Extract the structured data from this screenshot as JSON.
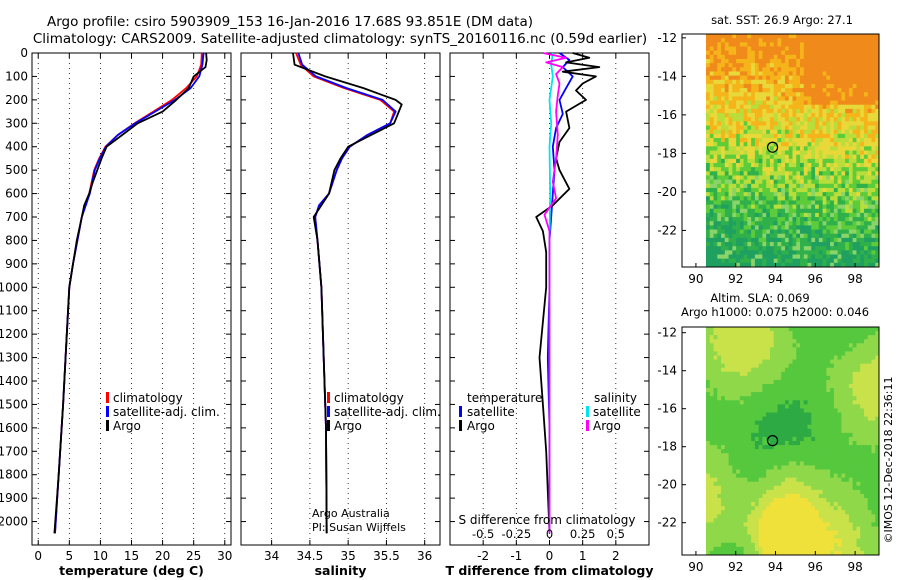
{
  "header": {
    "line1": "Argo profile: csiro 5903909_153 16-Jan-2016 17.68S 93.851E (DM data)",
    "line2": "Climatology: CARS2009. Satellite-adjusted climatology: synTS_20160116.nc (0.59d earlier)"
  },
  "watermark": "©IMOS 12-Dec-2018 22:36:11",
  "credit": {
    "line1": "Argo Australia",
    "line2": "PI: Susan Wijffels"
  },
  "colors": {
    "climatology": "#ff0000",
    "satellite": "#0000ff",
    "argo": "#000000",
    "s_satellite": "#00e5ee",
    "s_argo": "#ff00ff"
  },
  "chart_data": [
    {
      "type": "line",
      "name": "temperature",
      "xlabel": "temperature (deg C)",
      "ylabel": "depth",
      "xlim": [
        -1,
        31
      ],
      "ylim": [
        2100,
        0
      ],
      "xticks": [
        0,
        5,
        10,
        15,
        20,
        25,
        30
      ],
      "yticks": [
        0,
        100,
        200,
        300,
        400,
        500,
        600,
        700,
        800,
        900,
        1000,
        1100,
        1200,
        1300,
        1400,
        1500,
        1600,
        1700,
        1800,
        1900,
        2000
      ],
      "legend": [
        "climatology",
        "satellite-adj. clim.",
        "Argo"
      ],
      "series": [
        {
          "name": "climatology",
          "color": "#ff0000",
          "points": [
            [
              26.3,
              0
            ],
            [
              26.2,
              50
            ],
            [
              25.5,
              100
            ],
            [
              23.8,
              150
            ],
            [
              21.5,
              200
            ],
            [
              18.5,
              250
            ],
            [
              15.5,
              300
            ],
            [
              12.8,
              350
            ],
            [
              10.8,
              400
            ],
            [
              9.8,
              450
            ],
            [
              9.0,
              500
            ],
            [
              8.2,
              600
            ],
            [
              7.0,
              700
            ],
            [
              6.3,
              800
            ],
            [
              5.6,
              900
            ],
            [
              5.0,
              1000
            ],
            [
              4.6,
              1200
            ],
            [
              4.0,
              1500
            ],
            [
              3.3,
              1800
            ],
            [
              2.7,
              2050
            ]
          ]
        },
        {
          "name": "satellite-adj. clim.",
          "color": "#0000ff",
          "points": [
            [
              26.6,
              0
            ],
            [
              26.4,
              50
            ],
            [
              25.9,
              100
            ],
            [
              24.5,
              150
            ],
            [
              22.0,
              200
            ],
            [
              18.8,
              250
            ],
            [
              15.6,
              300
            ],
            [
              12.8,
              350
            ],
            [
              10.9,
              400
            ],
            [
              9.9,
              450
            ],
            [
              9.1,
              500
            ],
            [
              8.3,
              600
            ],
            [
              7.0,
              700
            ],
            [
              6.3,
              800
            ],
            [
              5.6,
              900
            ],
            [
              5.0,
              1000
            ],
            [
              4.6,
              1200
            ],
            [
              4.0,
              1500
            ],
            [
              3.3,
              1800
            ],
            [
              2.7,
              2050
            ]
          ]
        },
        {
          "name": "Argo",
          "color": "#000000",
          "points": [
            [
              27.0,
              0
            ],
            [
              27.1,
              30
            ],
            [
              26.9,
              60
            ],
            [
              25.0,
              100
            ],
            [
              24.2,
              150
            ],
            [
              22.2,
              200
            ],
            [
              20.0,
              250
            ],
            [
              16.0,
              300
            ],
            [
              13.5,
              350
            ],
            [
              11.0,
              400
            ],
            [
              10.2,
              450
            ],
            [
              9.5,
              500
            ],
            [
              8.8,
              550
            ],
            [
              8.2,
              600
            ],
            [
              7.4,
              650
            ],
            [
              7.0,
              700
            ],
            [
              6.2,
              800
            ],
            [
              5.6,
              900
            ],
            [
              5.0,
              1000
            ],
            [
              4.6,
              1200
            ],
            [
              4.0,
              1500
            ],
            [
              3.3,
              1800
            ],
            [
              2.6,
              2050
            ]
          ]
        }
      ]
    },
    {
      "type": "line",
      "name": "salinity",
      "xlabel": "salinity",
      "ylabel": "depth",
      "xlim": [
        33.6,
        36.2
      ],
      "ylim": [
        2100,
        0
      ],
      "xticks": [
        34,
        34.5,
        35,
        35.5,
        36
      ],
      "legend": [
        "climatology",
        "satellite-adj. clim.",
        "Argo"
      ],
      "series": [
        {
          "name": "climatology",
          "color": "#ff0000",
          "points": [
            [
              34.32,
              0
            ],
            [
              34.38,
              50
            ],
            [
              34.55,
              100
            ],
            [
              34.95,
              150
            ],
            [
              35.42,
              200
            ],
            [
              35.6,
              250
            ],
            [
              35.55,
              300
            ],
            [
              35.25,
              350
            ],
            [
              35.02,
              400
            ],
            [
              34.92,
              450
            ],
            [
              34.85,
              500
            ],
            [
              34.75,
              600
            ],
            [
              34.62,
              650
            ],
            [
              34.57,
              700
            ],
            [
              34.6,
              800
            ],
            [
              34.65,
              1000
            ],
            [
              34.68,
              1300
            ],
            [
              34.71,
              1600
            ],
            [
              34.72,
              2050
            ]
          ]
        },
        {
          "name": "satellite-adj. clim.",
          "color": "#0000ff",
          "points": [
            [
              34.35,
              0
            ],
            [
              34.4,
              50
            ],
            [
              34.58,
              100
            ],
            [
              34.98,
              150
            ],
            [
              35.45,
              200
            ],
            [
              35.62,
              250
            ],
            [
              35.55,
              300
            ],
            [
              35.25,
              350
            ],
            [
              35.02,
              400
            ],
            [
              34.92,
              450
            ],
            [
              34.85,
              500
            ],
            [
              34.75,
              600
            ],
            [
              34.62,
              650
            ],
            [
              34.57,
              700
            ],
            [
              34.6,
              800
            ],
            [
              34.65,
              1000
            ],
            [
              34.68,
              1300
            ],
            [
              34.71,
              1600
            ],
            [
              34.72,
              2050
            ]
          ]
        },
        {
          "name": "Argo",
          "color": "#000000",
          "points": [
            [
              34.28,
              0
            ],
            [
              34.3,
              50
            ],
            [
              34.7,
              100
            ],
            [
              35.2,
              150
            ],
            [
              35.62,
              200
            ],
            [
              35.7,
              220
            ],
            [
              35.6,
              300
            ],
            [
              35.3,
              350
            ],
            [
              35.0,
              400
            ],
            [
              34.9,
              450
            ],
            [
              34.82,
              500
            ],
            [
              34.75,
              600
            ],
            [
              34.55,
              700
            ],
            [
              34.6,
              800
            ],
            [
              34.65,
              1000
            ],
            [
              34.68,
              1300
            ],
            [
              34.71,
              1600
            ],
            [
              34.72,
              2050
            ]
          ]
        }
      ]
    },
    {
      "type": "line",
      "name": "difference",
      "xlabel": "T difference from climatology",
      "subtitle": "S difference from climatology",
      "xlim": [
        -3,
        3
      ],
      "ylim": [
        2100,
        0
      ],
      "xticks": [
        -2,
        -1,
        0,
        1,
        2
      ],
      "xtick_labels": [
        "-2",
        "-1",
        "0",
        "1",
        "2"
      ],
      "s_ticks": [
        -0.5,
        -0.25,
        0,
        0.25,
        0.5
      ],
      "s_tick_labels": [
        "-0.5",
        "-0.25",
        "0",
        "0.25",
        "0.5"
      ],
      "legend_temperature_title": "temperature",
      "legend_salinity_title": "salinity",
      "legend_labels": [
        "satellite",
        "Argo"
      ],
      "series": [
        {
          "name": "T satellite",
          "color": "#0000ff",
          "points": [
            [
              0.3,
              0
            ],
            [
              0.6,
              30
            ],
            [
              0.4,
              60
            ],
            [
              0.7,
              100
            ],
            [
              0.5,
              150
            ],
            [
              0.3,
              200
            ],
            [
              0.4,
              260
            ],
            [
              0.2,
              320
            ],
            [
              0.1,
              400
            ],
            [
              0.15,
              500
            ],
            [
              0.1,
              600
            ],
            [
              0.05,
              700
            ],
            [
              0.0,
              800
            ],
            [
              0.0,
              1000
            ],
            [
              -0.05,
              1300
            ],
            [
              0.0,
              1600
            ],
            [
              0.0,
              2050
            ]
          ]
        },
        {
          "name": "T Argo",
          "color": "#000000",
          "points": [
            [
              0.7,
              0
            ],
            [
              1.2,
              20
            ],
            [
              0.5,
              40
            ],
            [
              1.5,
              60
            ],
            [
              0.4,
              80
            ],
            [
              1.4,
              100
            ],
            [
              1.0,
              130
            ],
            [
              0.8,
              160
            ],
            [
              1.1,
              200
            ],
            [
              0.5,
              250
            ],
            [
              0.6,
              320
            ],
            [
              0.3,
              380
            ],
            [
              0.2,
              450
            ],
            [
              0.3,
              500
            ],
            [
              0.6,
              580
            ],
            [
              0.1,
              650
            ],
            [
              -0.4,
              700
            ],
            [
              -0.2,
              760
            ],
            [
              -0.1,
              850
            ],
            [
              -0.1,
              1000
            ],
            [
              -0.3,
              1300
            ],
            [
              -0.2,
              1500
            ],
            [
              -0.1,
              1700
            ],
            [
              0.0,
              2050
            ]
          ]
        },
        {
          "name": "S satellite",
          "color": "#00e5ee",
          "points": [
            [
              0.1,
              0
            ],
            [
              0.05,
              50
            ],
            [
              0.1,
              100
            ],
            [
              0.0,
              200
            ],
            [
              0.05,
              300
            ],
            [
              0.0,
              400
            ],
            [
              0.02,
              600
            ],
            [
              0.0,
              800
            ],
            [
              0.0,
              1200
            ],
            [
              0.0,
              2050
            ]
          ]
        },
        {
          "name": "S Argo",
          "color": "#ff00ff",
          "points": [
            [
              -0.2,
              0
            ],
            [
              0.5,
              20
            ],
            [
              -0.1,
              40
            ],
            [
              0.4,
              60
            ],
            [
              0.2,
              90
            ],
            [
              0.3,
              130
            ],
            [
              0.25,
              180
            ],
            [
              0.2,
              250
            ],
            [
              0.25,
              350
            ],
            [
              0.2,
              450
            ],
            [
              0.1,
              550
            ],
            [
              0.2,
              620
            ],
            [
              -0.15,
              690
            ],
            [
              0.0,
              760
            ],
            [
              0.0,
              900
            ],
            [
              0.0,
              1200
            ],
            [
              0.0,
              2050
            ]
          ]
        }
      ]
    },
    {
      "type": "heatmap",
      "name": "sst-map",
      "title": "sat. SST: 26.9 Argo: 27.1",
      "xlim": [
        89.3,
        99.2
      ],
      "ylim": [
        -23.9,
        -11.8
      ],
      "xticks": [
        90,
        92,
        94,
        96,
        98
      ],
      "yticks": [
        -12,
        -14,
        -16,
        -18,
        -20,
        -22
      ],
      "float": {
        "lon": 93.851,
        "lat": -17.68
      }
    },
    {
      "type": "heatmap",
      "name": "sla-map",
      "title": "Altim. SLA: 0.069",
      "subtitle": "Argo h1000: 0.075 h2000: 0.046",
      "xlim": [
        89.3,
        99.2
      ],
      "ylim": [
        -23.7,
        -11.7
      ],
      "xticks": [
        90,
        92,
        94,
        96,
        98
      ],
      "yticks": [
        -12,
        -14,
        -16,
        -18,
        -20,
        -22
      ],
      "float": {
        "lon": 93.851,
        "lat": -17.68
      }
    }
  ]
}
